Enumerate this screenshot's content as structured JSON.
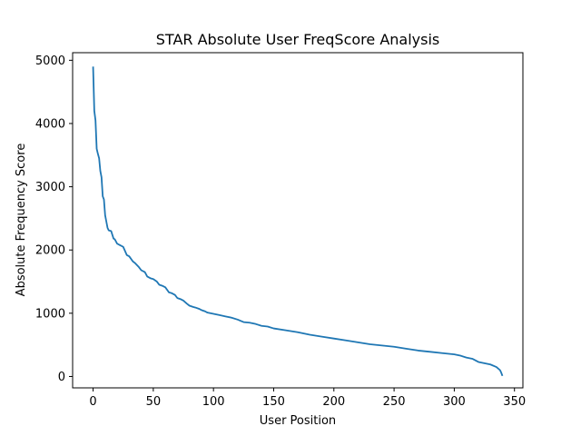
{
  "chart_data": {
    "type": "line",
    "title": "STAR Absolute User FreqScore Analysis",
    "xlabel": "User Position",
    "ylabel": "Absolute Frequency Score",
    "xlim": [
      -17,
      357
    ],
    "ylim": [
      -180,
      5120
    ],
    "xticks": [
      0,
      50,
      100,
      150,
      200,
      250,
      300,
      350
    ],
    "yticks": [
      0,
      1000,
      2000,
      3000,
      4000,
      5000
    ],
    "grid": false,
    "legend": "none",
    "line_color": "#1f77b4",
    "series": [
      {
        "x": [
          0,
          1,
          2,
          3,
          4,
          5,
          6,
          7,
          8,
          9,
          10,
          11,
          12,
          13,
          15,
          17,
          18,
          20,
          22,
          25,
          28,
          30,
          33,
          35,
          38,
          40,
          43,
          45,
          48,
          50,
          53,
          55,
          58,
          60,
          63,
          65,
          68,
          70,
          73,
          75,
          78,
          80,
          83,
          85,
          88,
          90,
          93,
          95,
          100,
          105,
          110,
          115,
          120,
          125,
          130,
          135,
          140,
          145,
          150,
          160,
          170,
          180,
          190,
          200,
          210,
          220,
          230,
          240,
          250,
          260,
          270,
          280,
          290,
          300,
          305,
          310,
          315,
          320,
          325,
          330,
          335,
          338,
          339,
          340
        ],
        "y": [
          4900,
          4200,
          4050,
          3600,
          3520,
          3450,
          3250,
          3150,
          2850,
          2800,
          2550,
          2450,
          2350,
          2310,
          2300,
          2180,
          2170,
          2100,
          2080,
          2050,
          1920,
          1900,
          1820,
          1790,
          1730,
          1680,
          1650,
          1580,
          1550,
          1540,
          1500,
          1450,
          1430,
          1410,
          1330,
          1320,
          1290,
          1240,
          1220,
          1200,
          1150,
          1120,
          1100,
          1090,
          1070,
          1050,
          1030,
          1010,
          990,
          970,
          950,
          930,
          900,
          860,
          850,
          830,
          800,
          790,
          760,
          730,
          700,
          660,
          630,
          600,
          570,
          540,
          510,
          490,
          470,
          440,
          410,
          390,
          370,
          350,
          330,
          300,
          280,
          230,
          210,
          190,
          150,
          100,
          60,
          10
        ]
      }
    ]
  }
}
